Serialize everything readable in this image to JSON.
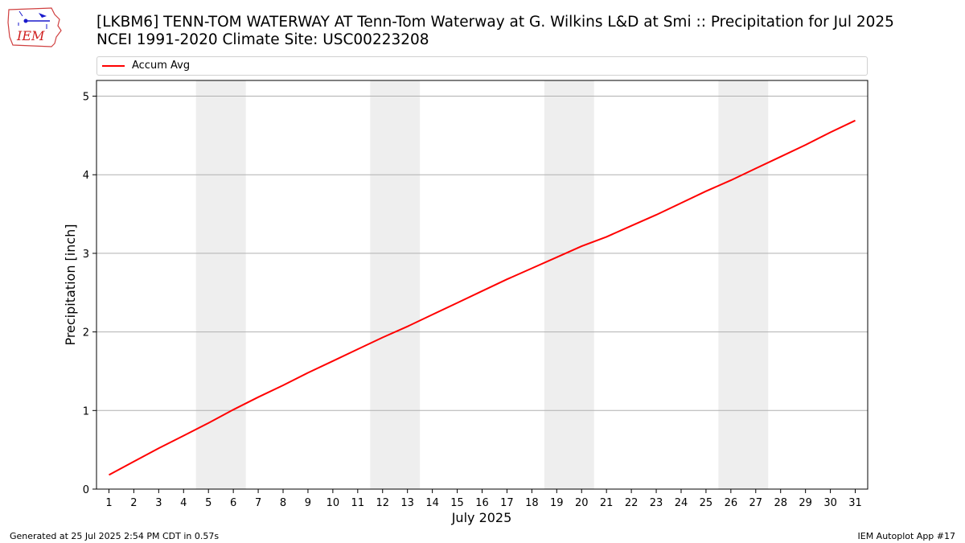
{
  "header": {
    "title": "[LKBM6] TENN-TOM WATERWAY  AT Tenn-Tom Waterway at G. Wilkins L&D at Smi :: Precipitation for Jul 2025",
    "subtitle": "NCEI 1991-2020 Climate Site: USC00223208",
    "logo_text": "IEM"
  },
  "footer": {
    "generated": "Generated at 25 Jul 2025 2:54 PM CDT in 0.57s",
    "app": "IEM Autoplot App #17"
  },
  "colors": {
    "series": "#ff0000",
    "weekend_band": "#eeeeee",
    "grid": "#b0b0b0"
  },
  "chart_data": {
    "type": "line",
    "xlabel": "July 2025",
    "ylabel": "Precipitation [inch]",
    "ylim": [
      0,
      5.2
    ],
    "yticks": [
      0,
      1,
      2,
      3,
      4,
      5
    ],
    "xlim": [
      0.5,
      31.5
    ],
    "x": [
      1,
      2,
      3,
      4,
      5,
      6,
      7,
      8,
      9,
      10,
      11,
      12,
      13,
      14,
      15,
      16,
      17,
      18,
      19,
      20,
      21,
      22,
      23,
      24,
      25,
      26,
      27,
      28,
      29,
      30,
      31
    ],
    "xtick_labels": [
      "1",
      "2",
      "3",
      "4",
      "5",
      "6",
      "7",
      "8",
      "9",
      "10",
      "11",
      "12",
      "13",
      "14",
      "15",
      "16",
      "17",
      "18",
      "19",
      "20",
      "21",
      "22",
      "23",
      "24",
      "25",
      "26",
      "27",
      "28",
      "29",
      "30",
      "31"
    ],
    "grid": "horizontal",
    "legend_position": "top",
    "shaded_days": [
      [
        5,
        6
      ],
      [
        12,
        13
      ],
      [
        19,
        20
      ],
      [
        26,
        27
      ]
    ],
    "series": [
      {
        "name": "Accum Avg",
        "color": "#ff0000",
        "values": [
          0.18,
          0.35,
          0.52,
          0.68,
          0.84,
          1.01,
          1.17,
          1.32,
          1.48,
          1.63,
          1.78,
          1.93,
          2.07,
          2.22,
          2.37,
          2.52,
          2.67,
          2.81,
          2.95,
          3.09,
          3.21,
          3.35,
          3.49,
          3.64,
          3.79,
          3.93,
          4.08,
          4.23,
          4.38,
          4.54,
          4.69
        ]
      }
    ]
  }
}
